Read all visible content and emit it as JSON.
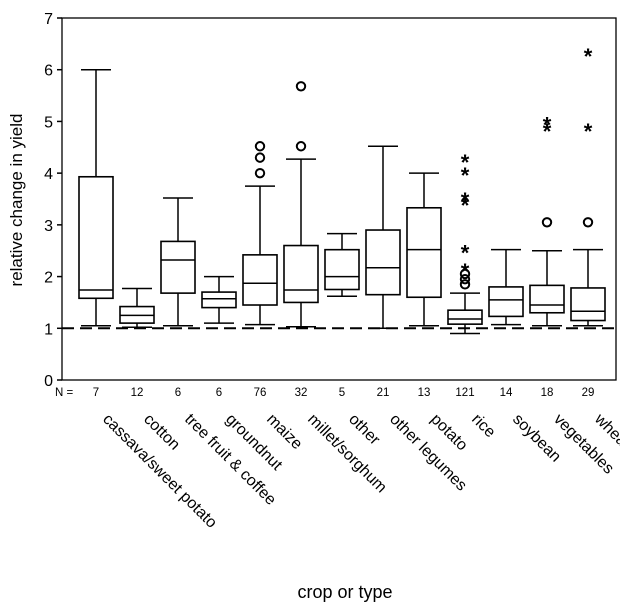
{
  "chart_data": {
    "type": "boxplot",
    "ylabel": "relative change in yield",
    "xlabel": "crop or type",
    "ylim": [
      0,
      7
    ],
    "yticks": [
      0,
      1,
      2,
      3,
      4,
      5,
      6,
      7
    ],
    "n_prefix": "N =",
    "reference_line": 1,
    "grid": false,
    "categories": [
      {
        "name": "cassava/sweet potato",
        "n": "7",
        "whisker_low": 1.05,
        "q1": 1.58,
        "median": 1.74,
        "q3": 3.93,
        "whisker_high": 6.0,
        "outliers": [],
        "extremes": []
      },
      {
        "name": "cotton",
        "n": "12",
        "whisker_low": 1.02,
        "q1": 1.1,
        "median": 1.25,
        "q3": 1.42,
        "whisker_high": 1.77,
        "outliers": [],
        "extremes": []
      },
      {
        "name": "tree fruit & coffee",
        "n": "6",
        "whisker_low": 1.05,
        "q1": 1.68,
        "median": 2.32,
        "q3": 2.68,
        "whisker_high": 3.52,
        "outliers": [],
        "extremes": []
      },
      {
        "name": "groundnut",
        "n": "6",
        "whisker_low": 1.1,
        "q1": 1.4,
        "median": 1.57,
        "q3": 1.7,
        "whisker_high": 2.0,
        "outliers": [],
        "extremes": []
      },
      {
        "name": "maize",
        "n": "76",
        "whisker_low": 1.07,
        "q1": 1.45,
        "median": 1.87,
        "q3": 2.42,
        "whisker_high": 3.75,
        "outliers": [
          4.0,
          4.3,
          4.52
        ],
        "extremes": []
      },
      {
        "name": "millet/sorghum",
        "n": "32",
        "whisker_low": 1.03,
        "q1": 1.5,
        "median": 1.74,
        "q3": 2.6,
        "whisker_high": 4.27,
        "outliers": [
          4.52,
          5.68
        ],
        "extremes": []
      },
      {
        "name": "other",
        "n": "5",
        "whisker_low": 1.62,
        "q1": 1.75,
        "median": 2.0,
        "q3": 2.52,
        "whisker_high": 2.83,
        "outliers": [],
        "extremes": []
      },
      {
        "name": "other legumes",
        "n": "21",
        "whisker_low": 1.0,
        "q1": 1.65,
        "median": 2.17,
        "q3": 2.9,
        "whisker_high": 4.52,
        "outliers": [],
        "extremes": []
      },
      {
        "name": "potato",
        "n": "13",
        "whisker_low": 1.05,
        "q1": 1.6,
        "median": 2.52,
        "q3": 3.33,
        "whisker_high": 4.0,
        "outliers": [],
        "extremes": []
      },
      {
        "name": "rice",
        "n": "121",
        "whisker_low": 0.9,
        "q1": 1.08,
        "median": 1.18,
        "q3": 1.35,
        "whisker_high": 1.68,
        "outliers": [
          1.85,
          1.95,
          2.05
        ],
        "extremes": [
          2.15,
          2.5,
          3.42,
          3.52,
          4.0,
          4.25
        ]
      },
      {
        "name": "soybean",
        "n": "14",
        "whisker_low": 1.07,
        "q1": 1.23,
        "median": 1.55,
        "q3": 1.8,
        "whisker_high": 2.52,
        "outliers": [],
        "extremes": []
      },
      {
        "name": "vegetables",
        "n": "18",
        "whisker_low": 1.05,
        "q1": 1.3,
        "median": 1.45,
        "q3": 1.83,
        "whisker_high": 2.5,
        "outliers": [
          3.05
        ],
        "extremes": [
          4.85,
          4.98
        ]
      },
      {
        "name": "wheat",
        "n": "29",
        "whisker_low": 1.05,
        "q1": 1.15,
        "median": 1.33,
        "q3": 1.78,
        "whisker_high": 2.52,
        "outliers": [
          3.05
        ],
        "extremes": [
          4.85,
          6.3
        ]
      }
    ]
  }
}
